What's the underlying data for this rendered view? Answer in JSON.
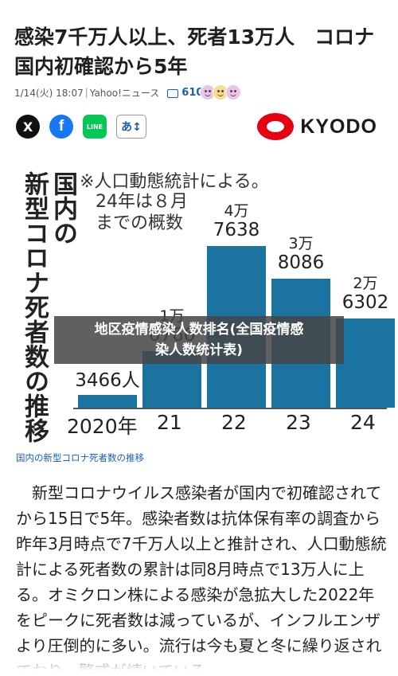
{
  "article": {
    "headline": "感染7千万人以上、死者13万人　コロナ国内初確認から5年",
    "date": "1/14(火) 18:07",
    "source": "Yahoo!ニュース",
    "comment_count": "610"
  },
  "share": {
    "x_label": "X",
    "facebook_label": "f",
    "line_label": "LINE",
    "font_size_label": "あ↕"
  },
  "publisher": {
    "name": "KYODO"
  },
  "chart_data": {
    "type": "bar",
    "title": "国内の新型コロナ死者数の推移",
    "note_lines": [
      "※人口動態統計による。",
      "24年は８月",
      "までの概数"
    ],
    "categories": [
      "2020年",
      "21",
      "22",
      "23",
      "24"
    ],
    "values": [
      3466,
      16766,
      47638,
      38086,
      26302
    ],
    "value_labels": [
      {
        "main": "3466人",
        "top": ""
      },
      {
        "main": "6766",
        "top": "1万"
      },
      {
        "main": "7638",
        "top": "4万"
      },
      {
        "main": "8086",
        "top": "3万"
      },
      {
        "main": "6302",
        "top": "2万"
      }
    ],
    "color": "#1a73a0"
  },
  "overlay": {
    "line1": "地区疫情感染人数排名(全国疫情感",
    "line2": "染人数统计表)"
  },
  "caption": "国内の新型コロナ死者数の推移",
  "body": "新型コロナウイルス感染者が国内で初確認されてから15日で5年。感染者数は抗体保有率の調査から昨年3月時点で7千万人以上と推計され、人口動態統計による死者数の累計は同8月時点で13万人に上る。オミクロン株による感染が急拡大した2022年をピークに死者数は減っているが、インフルエンザより圧倒的に多い。流行は今も夏と冬に繰り返されており、警戒が続いている。"
}
